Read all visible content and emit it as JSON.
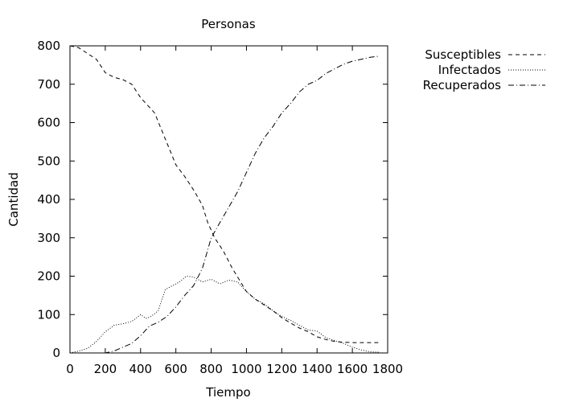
{
  "chart_data": {
    "type": "line",
    "title": "Personas",
    "xlabel": "Tiempo",
    "ylabel": "Cantidad",
    "xlim": [
      0,
      1800
    ],
    "ylim": [
      0,
      800
    ],
    "xticks": [
      0,
      200,
      400,
      600,
      800,
      1000,
      1200,
      1400,
      1600,
      1800
    ],
    "yticks": [
      0,
      100,
      200,
      300,
      400,
      500,
      600,
      700,
      800
    ],
    "grid": false,
    "legend_position": "outside-top-right",
    "series": [
      {
        "name": "Susceptibles",
        "style": "dashed",
        "points": [
          [
            0,
            800
          ],
          [
            50,
            795
          ],
          [
            100,
            780
          ],
          [
            150,
            765
          ],
          [
            200,
            730
          ],
          [
            250,
            718
          ],
          [
            300,
            712
          ],
          [
            350,
            700
          ],
          [
            400,
            665
          ],
          [
            450,
            640
          ],
          [
            480,
            625
          ],
          [
            520,
            580
          ],
          [
            560,
            535
          ],
          [
            600,
            490
          ],
          [
            650,
            460
          ],
          [
            700,
            425
          ],
          [
            750,
            385
          ],
          [
            780,
            340
          ],
          [
            820,
            300
          ],
          [
            870,
            265
          ],
          [
            920,
            220
          ],
          [
            960,
            190
          ],
          [
            1000,
            160
          ],
          [
            1050,
            140
          ],
          [
            1100,
            125
          ],
          [
            1150,
            110
          ],
          [
            1200,
            92
          ],
          [
            1250,
            78
          ],
          [
            1300,
            65
          ],
          [
            1350,
            55
          ],
          [
            1400,
            42
          ],
          [
            1450,
            35
          ],
          [
            1500,
            30
          ],
          [
            1550,
            28
          ],
          [
            1600,
            27
          ],
          [
            1650,
            27
          ],
          [
            1750,
            27
          ]
        ]
      },
      {
        "name": "Infectados",
        "style": "dotted",
        "points": [
          [
            0,
            0
          ],
          [
            50,
            5
          ],
          [
            100,
            12
          ],
          [
            150,
            30
          ],
          [
            200,
            55
          ],
          [
            250,
            72
          ],
          [
            300,
            76
          ],
          [
            350,
            82
          ],
          [
            400,
            100
          ],
          [
            430,
            90
          ],
          [
            460,
            95
          ],
          [
            500,
            110
          ],
          [
            540,
            165
          ],
          [
            580,
            175
          ],
          [
            620,
            185
          ],
          [
            660,
            200
          ],
          [
            700,
            198
          ],
          [
            750,
            185
          ],
          [
            800,
            192
          ],
          [
            850,
            180
          ],
          [
            900,
            190
          ],
          [
            950,
            185
          ],
          [
            1000,
            160
          ],
          [
            1050,
            140
          ],
          [
            1100,
            128
          ],
          [
            1150,
            110
          ],
          [
            1200,
            95
          ],
          [
            1250,
            85
          ],
          [
            1300,
            72
          ],
          [
            1350,
            60
          ],
          [
            1400,
            57
          ],
          [
            1450,
            40
          ],
          [
            1500,
            32
          ],
          [
            1550,
            25
          ],
          [
            1600,
            15
          ],
          [
            1650,
            8
          ],
          [
            1700,
            3
          ],
          [
            1750,
            2
          ]
        ]
      },
      {
        "name": "Recuperados",
        "style": "dash-dot",
        "points": [
          [
            0,
            0
          ],
          [
            100,
            0
          ],
          [
            200,
            0
          ],
          [
            250,
            5
          ],
          [
            300,
            15
          ],
          [
            350,
            25
          ],
          [
            400,
            45
          ],
          [
            450,
            70
          ],
          [
            500,
            80
          ],
          [
            550,
            95
          ],
          [
            600,
            120
          ],
          [
            650,
            150
          ],
          [
            700,
            175
          ],
          [
            750,
            220
          ],
          [
            800,
            300
          ],
          [
            850,
            340
          ],
          [
            900,
            380
          ],
          [
            950,
            420
          ],
          [
            1000,
            470
          ],
          [
            1050,
            520
          ],
          [
            1100,
            560
          ],
          [
            1150,
            590
          ],
          [
            1200,
            625
          ],
          [
            1250,
            650
          ],
          [
            1300,
            680
          ],
          [
            1350,
            700
          ],
          [
            1400,
            710
          ],
          [
            1450,
            728
          ],
          [
            1500,
            740
          ],
          [
            1550,
            752
          ],
          [
            1600,
            760
          ],
          [
            1650,
            765
          ],
          [
            1700,
            770
          ],
          [
            1750,
            773
          ]
        ]
      }
    ]
  }
}
